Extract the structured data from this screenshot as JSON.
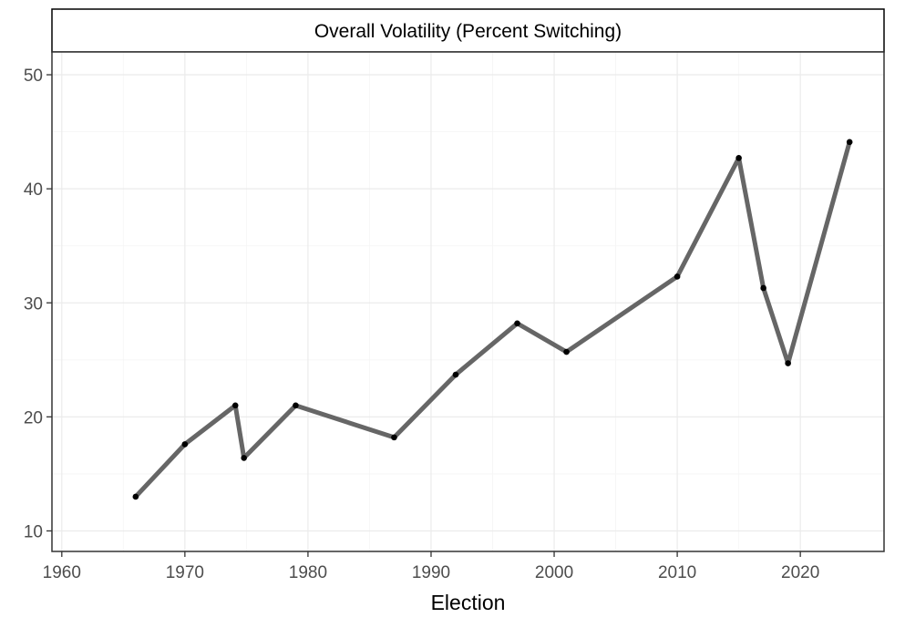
{
  "chart_data": {
    "type": "line",
    "strip_title": "Overall Volatility (Percent Switching)",
    "title": "",
    "xlabel": "Election",
    "ylabel": "",
    "xlim": [
      1959.2,
      2026.8
    ],
    "ylim": [
      8.2,
      52.0
    ],
    "x_ticks": [
      1960,
      1970,
      1980,
      1990,
      2000,
      2010,
      2020
    ],
    "y_ticks": [
      10,
      20,
      30,
      40,
      50
    ],
    "x_tick_labels": [
      "1960",
      "1970",
      "1980",
      "1990",
      "2000",
      "2010",
      "2020"
    ],
    "y_tick_labels": [
      "10",
      "20",
      "30",
      "40",
      "50"
    ],
    "grid": true,
    "line_color": "#666666",
    "point_color": "#000000",
    "series": [
      {
        "points": [
          {
            "x": 1966,
            "y": 13.0
          },
          {
            "x": 1970,
            "y": 17.6
          },
          {
            "x": 1974.1,
            "y": 21.0
          },
          {
            "x": 1974.8,
            "y": 16.4
          },
          {
            "x": 1979,
            "y": 21.0
          },
          {
            "x": 1987,
            "y": 18.2
          },
          {
            "x": 1992,
            "y": 23.7
          },
          {
            "x": 1997,
            "y": 28.2
          },
          {
            "x": 2001,
            "y": 25.7
          },
          {
            "x": 2010,
            "y": 32.3
          },
          {
            "x": 2015,
            "y": 42.7
          },
          {
            "x": 2017,
            "y": 31.3
          },
          {
            "x": 2019,
            "y": 24.7
          },
          {
            "x": 2024,
            "y": 44.1
          }
        ]
      }
    ]
  }
}
